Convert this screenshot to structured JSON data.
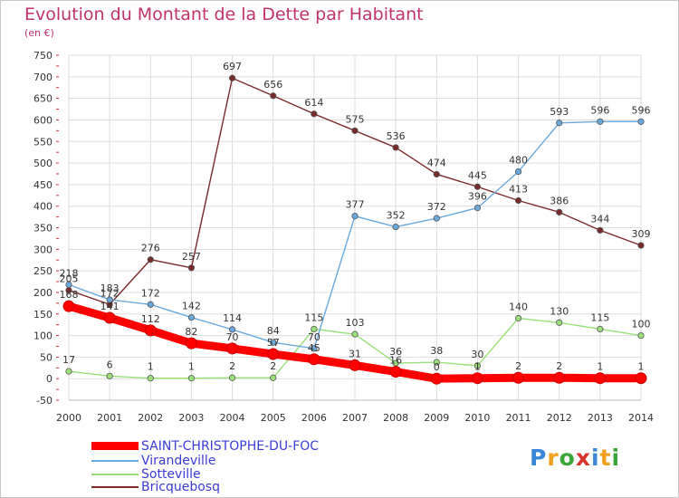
{
  "title": "Evolution du Montant de la Dette par Habitant",
  "unit": "(en €)",
  "colors": {
    "title": "#c0336a",
    "grid": "#dddddd",
    "axis_text": "#333333",
    "legend_text": "#3b3bd6"
  },
  "chart_data": {
    "type": "line",
    "x": [
      "2000",
      "2001",
      "2002",
      "2003",
      "2004",
      "2005",
      "2006",
      "2007",
      "2008",
      "2009",
      "2010",
      "2011",
      "2012",
      "2013",
      "2014"
    ],
    "ylim": [
      -50,
      750
    ],
    "yticks": [
      -50,
      0,
      50,
      100,
      150,
      200,
      250,
      300,
      350,
      400,
      450,
      500,
      550,
      600,
      650,
      700,
      750
    ],
    "grid": true,
    "legend_position": "bottom-left",
    "series": [
      {
        "name": "SAINT-CHRISTOPHE-DU-FOC",
        "color": "#ff0000",
        "values": [
          168,
          141,
          112,
          82,
          70,
          57,
          45,
          31,
          16,
          0,
          1,
          2,
          2,
          1,
          1
        ],
        "labels": [
          "168",
          "141",
          "112",
          "82",
          "70",
          "57",
          "45",
          "31",
          "16",
          "0",
          "1",
          "2",
          "2",
          "1",
          "1"
        ],
        "bold": true
      },
      {
        "name": "Virandeville",
        "color": "#6aa9dd",
        "values": [
          218,
          183,
          172,
          142,
          114,
          84,
          70,
          377,
          352,
          372,
          396,
          480,
          593,
          596,
          596
        ],
        "labels": [
          "218",
          "183",
          "172",
          "142",
          "114",
          "84",
          "70",
          "377",
          "352",
          "372",
          "396",
          "480",
          "593",
          "596",
          "596"
        ]
      },
      {
        "name": "Sotteville",
        "color": "#99e07a",
        "values": [
          17,
          6,
          1,
          1,
          2,
          2,
          115,
          103,
          36,
          38,
          30,
          140,
          130,
          115,
          100
        ],
        "labels": [
          "17",
          "6",
          "1",
          "1",
          "2",
          "2",
          "115",
          "103",
          "36",
          "38",
          "30",
          "140",
          "130",
          "115",
          "100"
        ]
      },
      {
        "name": "Bricquebosq",
        "color": "#7a2a2a",
        "values": [
          205,
          172,
          276,
          257,
          697,
          656,
          614,
          575,
          536,
          474,
          445,
          413,
          386,
          344,
          309
        ],
        "labels": [
          "205",
          "172",
          "276",
          "257",
          "697",
          "656",
          "614",
          "575",
          "536",
          "474",
          "445",
          "413",
          "386",
          "344",
          "309"
        ]
      }
    ]
  },
  "logo": {
    "letters": [
      "P",
      "r",
      "o",
      "x",
      "i",
      "t",
      "i"
    ],
    "colors": [
      "#3a86d8",
      "#f0a020",
      "#3aa63a",
      "#d8342c",
      "#3a86d8",
      "#f0a020",
      "#3aa63a"
    ]
  }
}
